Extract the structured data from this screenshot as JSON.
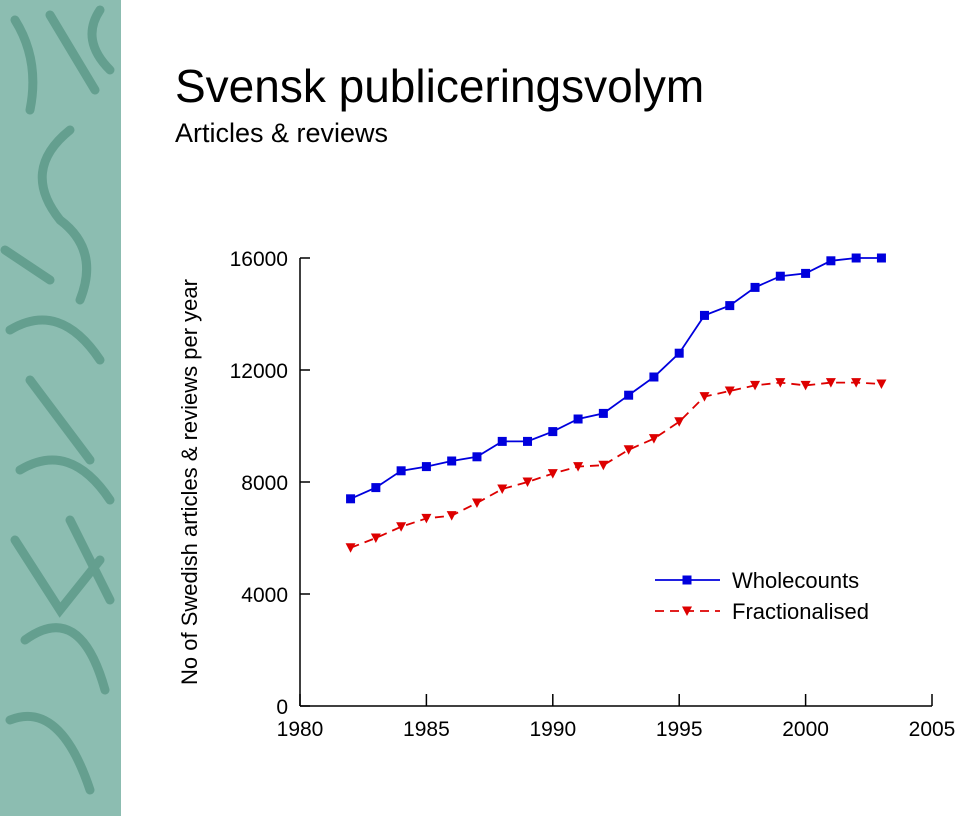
{
  "chart_data": {
    "type": "line",
    "title": "Svensk publiceringsvolym",
    "subtitle": "Articles & reviews",
    "y_label": "No of Swedish articles & reviews per year",
    "x": [
      1982,
      1983,
      1984,
      1985,
      1986,
      1987,
      1988,
      1989,
      1990,
      1991,
      1992,
      1993,
      1994,
      1995,
      1996,
      1997,
      1998,
      1999,
      2000,
      2001,
      2002,
      2003
    ],
    "series": [
      {
        "name": "Wholecounts",
        "color": "#0000dd",
        "marker": "square",
        "dash": false,
        "values": [
          7400,
          7800,
          8400,
          8550,
          8750,
          8900,
          9450,
          9450,
          9800,
          10250,
          10450,
          11100,
          11750,
          12600,
          13950,
          14300,
          14950,
          15350,
          15450,
          15900,
          16000,
          16000
        ]
      },
      {
        "name": "Fractionalised",
        "color": "#dd0000",
        "marker": "triangle-down",
        "dash": true,
        "values": [
          5650,
          6000,
          6400,
          6700,
          6800,
          7250,
          7750,
          8000,
          8300,
          8550,
          8600,
          9150,
          9550,
          10150,
          11050,
          11250,
          11450,
          11550,
          11450,
          11550,
          11550,
          11500
        ]
      }
    ],
    "xlim": [
      1980,
      2005
    ],
    "xticks": [
      1980,
      1985,
      1990,
      1995,
      2000,
      2005
    ],
    "ylim": [
      0,
      16000
    ],
    "yticks": [
      0,
      4000,
      8000,
      12000,
      16000
    ],
    "grid": false,
    "legend": "lower right"
  }
}
